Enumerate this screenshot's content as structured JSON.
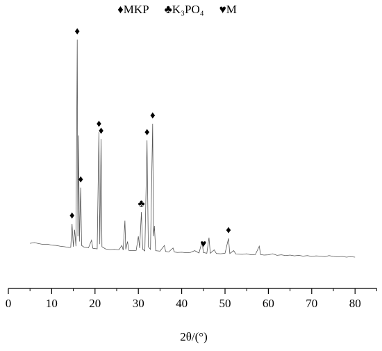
{
  "chart_data": {
    "type": "line",
    "legend": [
      {
        "symbol": "♦",
        "label": "MKP"
      },
      {
        "symbol": "♣",
        "label": "K₃PO₄"
      },
      {
        "symbol": "♥",
        "label": "M"
      }
    ],
    "x_label": "2θ/(°)",
    "xlim": [
      0,
      85
    ],
    "xticks": [
      0,
      10,
      20,
      30,
      40,
      50,
      60,
      70,
      80
    ],
    "xminor": [
      5,
      15,
      25,
      35,
      45,
      55,
      65,
      75,
      85
    ],
    "ylim": [
      0,
      100
    ],
    "color": "#555555",
    "x": [
      5,
      6,
      7,
      8,
      9,
      10,
      11,
      12,
      13,
      14,
      14.4,
      14.7,
      15.0,
      15.3,
      15.6,
      15.9,
      16.05,
      16.2,
      16.4,
      16.7,
      16.9,
      17.5,
      18.5,
      19.2,
      19.5,
      20.5,
      20.9,
      21.1,
      21.4,
      21.6,
      22.5,
      23.5,
      24.5,
      25.5,
      26.2,
      26.5,
      26.9,
      27.1,
      27.5,
      27.8,
      28.5,
      29.5,
      30.0,
      30.3,
      30.7,
      31.0,
      31.5,
      32.0,
      32.3,
      32.8,
      33.3,
      33.5,
      33.7,
      34.0,
      35,
      36,
      36.3,
      37,
      38,
      38.3,
      39,
      40,
      41,
      42,
      43,
      44,
      44.7,
      45.0,
      45.8,
      46.3,
      46.6,
      47.5,
      48,
      49,
      50,
      50.8,
      51.1,
      52,
      52.5,
      54,
      55,
      56,
      57,
      57.9,
      58.2,
      59,
      60,
      61,
      62,
      63,
      64,
      65,
      66,
      67,
      68,
      69,
      70,
      71,
      72,
      73,
      74,
      75,
      76,
      77,
      78,
      79,
      80
    ],
    "values": [
      17.3,
      17.6,
      17.2,
      16.9,
      17.0,
      16.6,
      16.5,
      16.2,
      16.0,
      15.7,
      15.8,
      24.8,
      16.0,
      22.5,
      16.2,
      95.5,
      20,
      58.7,
      18,
      38.7,
      16.5,
      15.8,
      15.6,
      18.5,
      15.4,
      15.2,
      60,
      17,
      57.3,
      16,
      15.1,
      14.9,
      15.0,
      14.8,
      16.5,
      14.7,
      26,
      15,
      18,
      14.6,
      14.5,
      14.6,
      20,
      15.5,
      29.3,
      15.0,
      14.4,
      56.8,
      16,
      15,
      63.2,
      20,
      24,
      14.5,
      14.3,
      16.5,
      14.2,
      14.0,
      15.5,
      14.0,
      13.8,
      13.9,
      13.7,
      13.8,
      14.5,
      13.6,
      18,
      13.8,
      13.5,
      19.5,
      13.5,
      14.8,
      13.4,
      13.3,
      13.5,
      19.2,
      13.4,
      14.5,
      13.2,
      13.1,
      13.3,
      12.9,
      13.0,
      16.2,
      13.0,
      12.8,
      12.9,
      13.3,
      12.7,
      12.9,
      12.6,
      12.8,
      12.5,
      12.7,
      12.4,
      12.6,
      12.3,
      12.5,
      12.4,
      12.2,
      12.6,
      12.3,
      12.1,
      12.3,
      12.0,
      12.2,
      12.0
    ],
    "annotations": [
      {
        "label": "♦",
        "x": 14.7
      },
      {
        "label": "♦",
        "x": 15.9
      },
      {
        "label": "♦",
        "x": 16.7
      },
      {
        "label": "♦",
        "x": 20.9
      },
      {
        "label": "♦",
        "x": 21.4
      },
      {
        "label": "♣",
        "x": 30.7
      },
      {
        "label": "♦",
        "x": 32.0
      },
      {
        "label": "♦",
        "x": 33.3
      },
      {
        "label": "♥",
        "x": 45.0
      },
      {
        "label": "♦",
        "x": 50.8
      }
    ]
  }
}
